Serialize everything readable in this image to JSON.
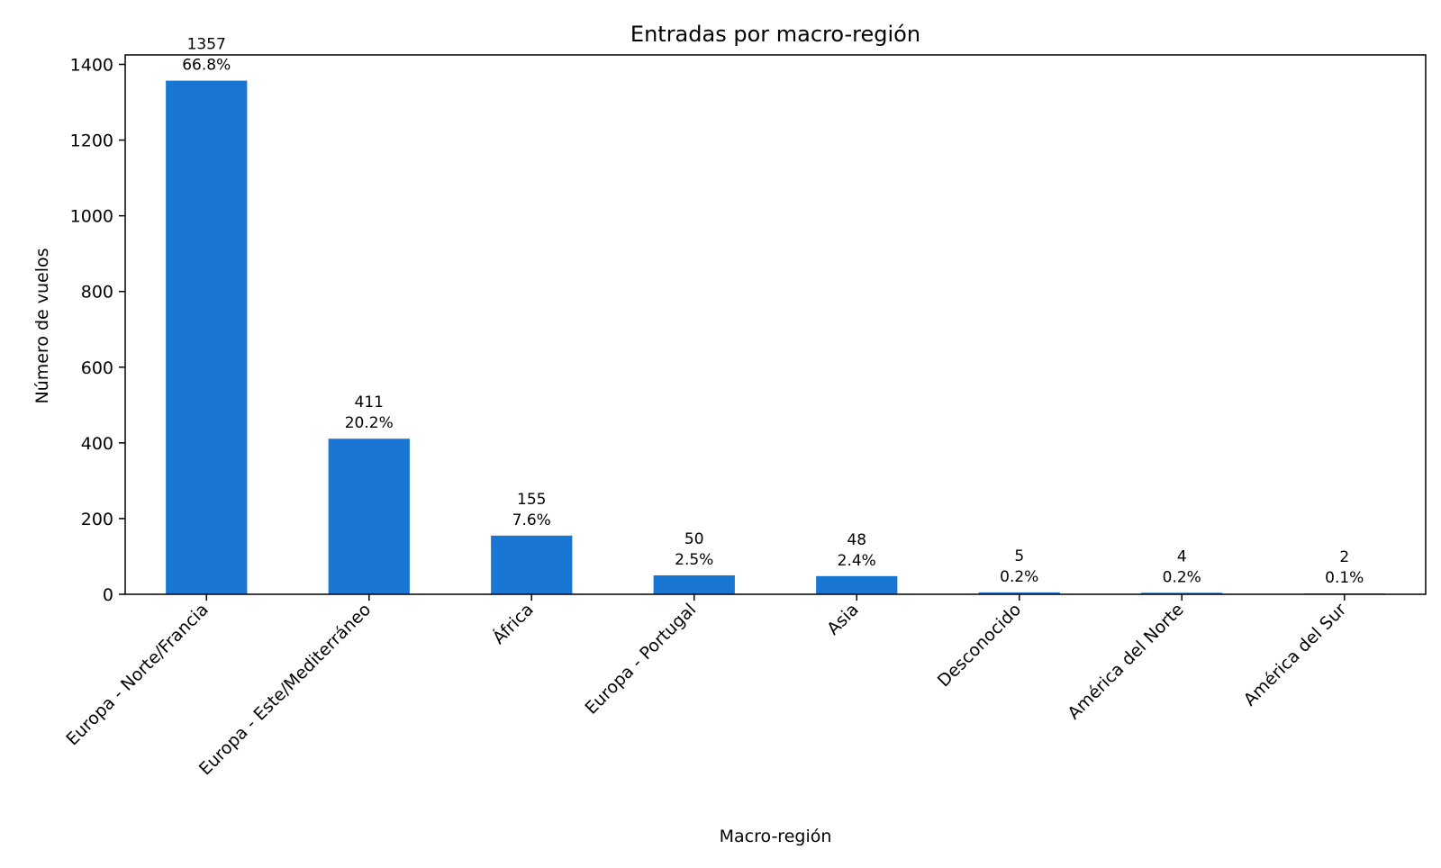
{
  "chart_data": {
    "type": "bar",
    "title": "Entradas por macro-región",
    "xlabel": "Macro-región",
    "ylabel": "Número de vuelos",
    "categories": [
      "Europa - Norte/Francia",
      "Europa - Este/Mediterráneo",
      "África",
      "Europa - Portugal",
      "Asia",
      "Desconocido",
      "América del Norte",
      "América del Sur"
    ],
    "values": [
      1357,
      411,
      155,
      50,
      48,
      5,
      4,
      2
    ],
    "percent_labels": [
      "66.8%",
      "20.2%",
      "7.6%",
      "2.5%",
      "2.4%",
      "0.2%",
      "0.2%",
      "0.1%"
    ],
    "ylim": [
      0,
      1425
    ],
    "yticks": [
      0,
      200,
      400,
      600,
      800,
      1000,
      1200,
      1400
    ],
    "grid": false,
    "legend": "none",
    "colors": {
      "bar": "#1976d2"
    }
  }
}
